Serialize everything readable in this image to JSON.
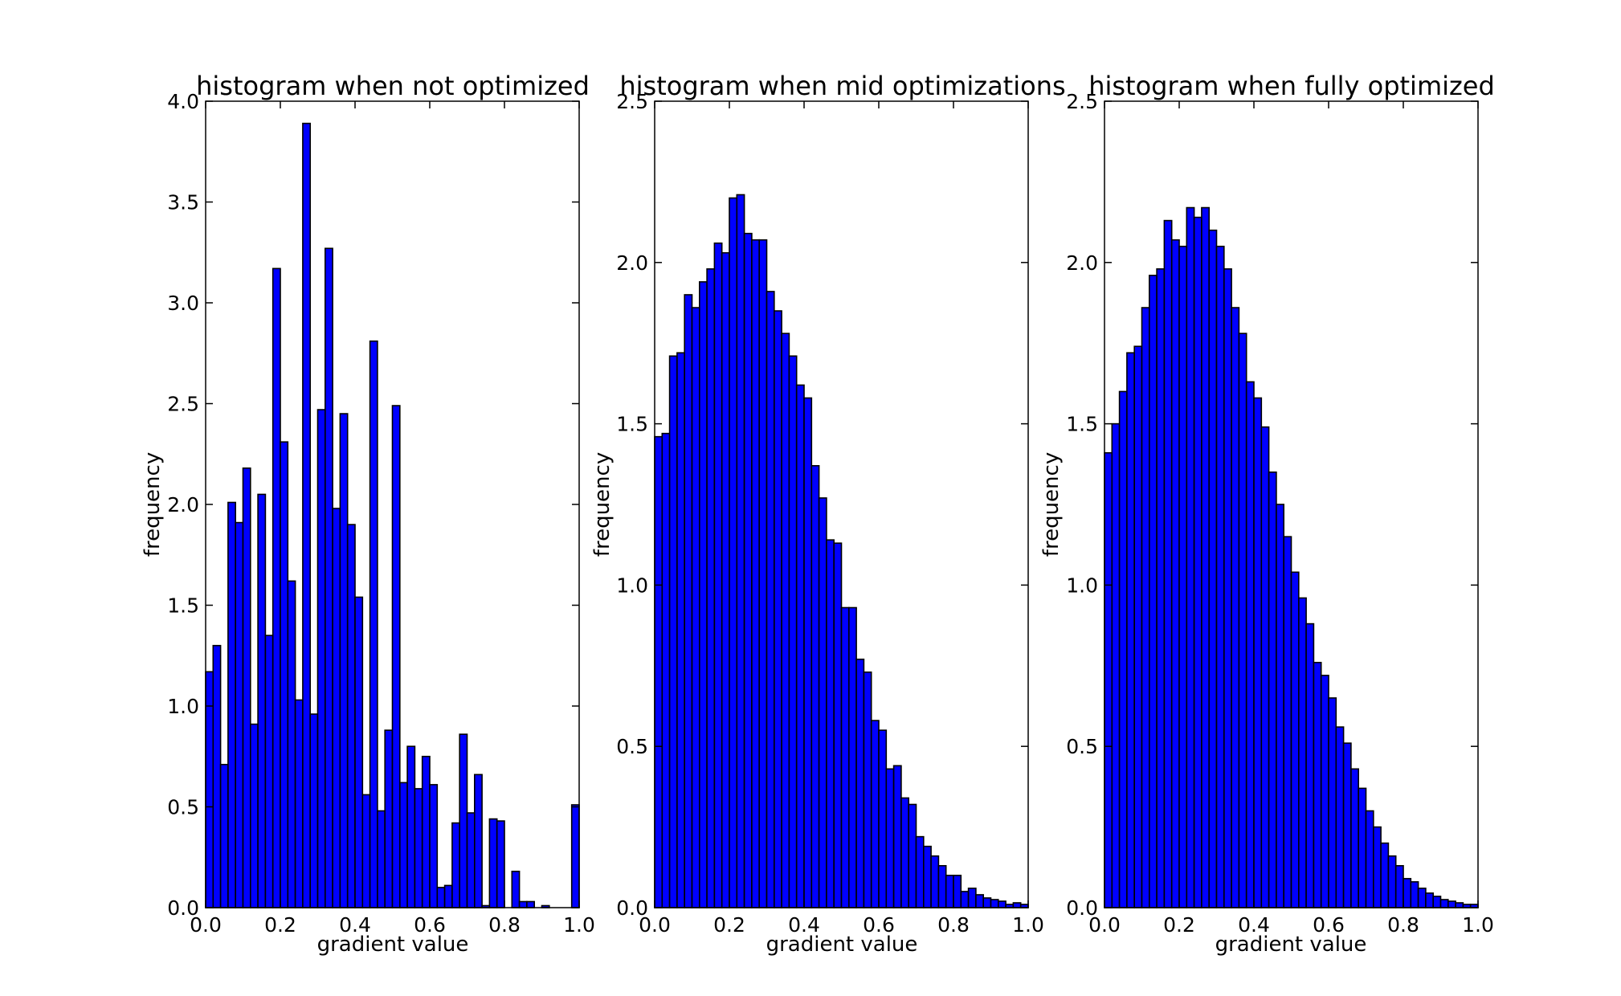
{
  "chart_data": [
    {
      "type": "histogram",
      "title": "histogram when not optimized",
      "xlabel": "gradient value",
      "ylabel": "frequency",
      "xlim": [
        0.0,
        1.0
      ],
      "ylim": [
        0.0,
        4.0
      ],
      "xticks": [
        "0.0",
        "0.2",
        "0.4",
        "0.6",
        "0.8",
        "1.0"
      ],
      "yticks": [
        "0.0",
        "0.5",
        "1.0",
        "1.5",
        "2.0",
        "2.5",
        "3.0",
        "3.5",
        "4.0"
      ],
      "bar_color": "#0000ff",
      "bin_start": 0.0,
      "bin_width": 0.02,
      "values": [
        1.17,
        1.3,
        0.71,
        2.01,
        1.91,
        2.18,
        0.91,
        2.05,
        1.35,
        3.17,
        2.31,
        1.62,
        1.03,
        3.89,
        0.96,
        2.47,
        3.27,
        1.98,
        2.45,
        1.9,
        1.54,
        0.56,
        2.81,
        0.48,
        0.88,
        2.49,
        0.62,
        0.8,
        0.59,
        0.75,
        0.61,
        0.1,
        0.11,
        0.42,
        0.86,
        0.47,
        0.66,
        0.01,
        0.44,
        0.43,
        0.0,
        0.18,
        0.03,
        0.03,
        0.0,
        0.01,
        0.0,
        0.0,
        0.0,
        0.51
      ]
    },
    {
      "type": "histogram",
      "title": "histogram when mid optimizations",
      "xlabel": "gradient value",
      "ylabel": "frequency",
      "xlim": [
        0.0,
        1.0
      ],
      "ylim": [
        0.0,
        2.5
      ],
      "xticks": [
        "0.0",
        "0.2",
        "0.4",
        "0.6",
        "0.8",
        "1.0"
      ],
      "yticks": [
        "0.0",
        "0.5",
        "1.0",
        "1.5",
        "2.0",
        "2.5"
      ],
      "bar_color": "#0000ff",
      "bin_start": 0.0,
      "bin_width": 0.02,
      "values": [
        1.46,
        1.47,
        1.71,
        1.72,
        1.9,
        1.86,
        1.94,
        1.98,
        2.06,
        2.03,
        2.2,
        2.21,
        2.09,
        2.07,
        2.07,
        1.91,
        1.85,
        1.78,
        1.71,
        1.62,
        1.58,
        1.37,
        1.27,
        1.14,
        1.13,
        0.93,
        0.93,
        0.77,
        0.73,
        0.58,
        0.55,
        0.43,
        0.44,
        0.34,
        0.32,
        0.22,
        0.19,
        0.16,
        0.13,
        0.1,
        0.1,
        0.05,
        0.06,
        0.04,
        0.03,
        0.025,
        0.02,
        0.01,
        0.015,
        0.01
      ]
    },
    {
      "type": "histogram",
      "title": "histogram when fully optimized",
      "xlabel": "gradient value",
      "ylabel": "frequency",
      "xlim": [
        0.0,
        1.0
      ],
      "ylim": [
        0.0,
        2.5
      ],
      "xticks": [
        "0.0",
        "0.2",
        "0.4",
        "0.6",
        "0.8",
        "1.0"
      ],
      "yticks": [
        "0.0",
        "0.5",
        "1.0",
        "1.5",
        "2.0",
        "2.5"
      ],
      "bar_color": "#0000ff",
      "bin_start": 0.0,
      "bin_width": 0.02,
      "values": [
        1.41,
        1.5,
        1.6,
        1.72,
        1.74,
        1.86,
        1.96,
        1.98,
        2.13,
        2.07,
        2.05,
        2.17,
        2.14,
        2.17,
        2.1,
        2.05,
        1.98,
        1.86,
        1.78,
        1.63,
        1.58,
        1.49,
        1.35,
        1.25,
        1.15,
        1.04,
        0.96,
        0.88,
        0.76,
        0.72,
        0.65,
        0.56,
        0.51,
        0.43,
        0.37,
        0.3,
        0.25,
        0.2,
        0.16,
        0.13,
        0.09,
        0.08,
        0.06,
        0.045,
        0.035,
        0.025,
        0.02,
        0.015,
        0.01,
        0.01
      ]
    }
  ]
}
